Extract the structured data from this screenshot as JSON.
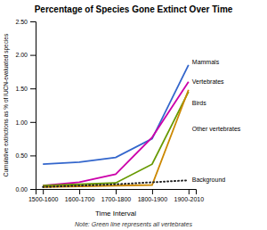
{
  "chart_data": {
    "type": "line",
    "title": "Percentage of Species Gone Extinct Over Time",
    "x_label": "Time Interval",
    "y_label": "Cumulative extinctions as % of IUCN-evaluated species",
    "note": "Note: Green line represents all vertebrates",
    "categories": [
      "1500-1600",
      "1600-1700",
      "1700-1800",
      "1800-1900",
      "1900-2010"
    ],
    "ylim": [
      0.0,
      2.5
    ],
    "yticks": [
      {
        "value": 0.0,
        "label": "0.00"
      },
      {
        "value": 0.5,
        "label": "0.50"
      },
      {
        "value": 1.0,
        "label": "1.00"
      },
      {
        "value": 1.5,
        "label": "1.50"
      },
      {
        "value": 2.0,
        "label": "2.00"
      },
      {
        "value": 2.5,
        "label": "2.50"
      }
    ],
    "series": [
      {
        "color": "#3366cc",
        "line_style": "solid",
        "values": [
          0.37,
          0.4,
          0.47,
          0.75,
          1.85
        ]
      },
      {
        "color": "#cc00aa",
        "line_style": "solid",
        "values": [
          0.05,
          0.1,
          0.22,
          0.77,
          1.6
        ]
      },
      {
        "color": "#669900",
        "line_style": "solid",
        "values": [
          0.05,
          0.07,
          0.09,
          0.37,
          1.45
        ]
      },
      {
        "color": "#cc8800",
        "line_style": "solid",
        "values": [
          0.03,
          0.04,
          0.05,
          0.06,
          1.48
        ]
      },
      {
        "color": "#222222",
        "line_style": "dotted",
        "values": [
          0.03,
          0.05,
          0.07,
          0.1,
          0.13
        ]
      }
    ],
    "annotations": [
      {
        "text": "Mammals",
        "y": 1.9
      },
      {
        "text": "Vertebrates",
        "y": 1.6
      },
      {
        "text": "Birds",
        "y": 1.28
      },
      {
        "text": "Other vertebrates",
        "y": 0.9
      },
      {
        "text": "Background",
        "y": 0.14
      }
    ]
  }
}
